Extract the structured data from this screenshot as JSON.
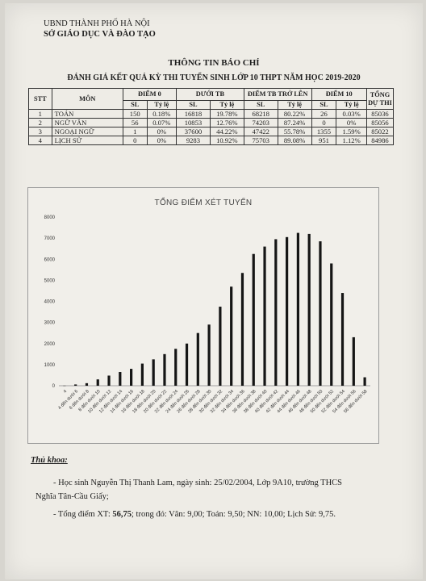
{
  "header": {
    "org_line1": "UBND THÀNH PHỐ HÀ NỘI",
    "org_line2": "SỞ GIÁO DỤC VÀ ĐÀO TẠO"
  },
  "titles": {
    "main": "THÔNG TIN BÁO CHÍ",
    "sub": "ĐÁNH GIÁ KẾT QUẢ KỲ THI TUYỂN SINH LỚP 10 THPT NĂM HỌC 2019-2020"
  },
  "table": {
    "headers": {
      "stt": "STT",
      "mon": "MÔN",
      "diem0": "ĐIỂM 0",
      "duoi_tb": "DƯỚI TB",
      "tb_tro_len": "ĐIỂM TB TRỞ LÊN",
      "diem10": "ĐIỂM 10",
      "tong_du_thi": "TỔNG DỰ THI",
      "sl": "SL",
      "ty_le": "Tỷ lệ"
    },
    "rows": [
      {
        "stt": "1",
        "mon": "TOÁN",
        "d0_sl": "150",
        "d0_tl": "0.18%",
        "dtb_sl": "16818",
        "dtb_tl": "19.78%",
        "tb_sl": "68218",
        "tb_tl": "80.22%",
        "d10_sl": "26",
        "d10_tl": "0.03%",
        "tong": "85036"
      },
      {
        "stt": "2",
        "mon": "NGỮ VĂN",
        "d0_sl": "56",
        "d0_tl": "0.07%",
        "dtb_sl": "10853",
        "dtb_tl": "12.76%",
        "tb_sl": "74203",
        "tb_tl": "87.24%",
        "d10_sl": "0",
        "d10_tl": "0%",
        "tong": "85056"
      },
      {
        "stt": "3",
        "mon": "NGOẠI NGỮ",
        "d0_sl": "1",
        "d0_tl": "0%",
        "dtb_sl": "37600",
        "dtb_tl": "44.22%",
        "tb_sl": "47422",
        "tb_tl": "55.78%",
        "d10_sl": "1355",
        "d10_tl": "1.59%",
        "tong": "85022"
      },
      {
        "stt": "4",
        "mon": "LỊCH SỬ",
        "d0_sl": "0",
        "d0_tl": "0%",
        "dtb_sl": "9283",
        "dtb_tl": "10.92%",
        "tb_sl": "75703",
        "tb_tl": "89.08%",
        "d10_sl": "951",
        "d10_tl": "1.12%",
        "tong": "84986"
      }
    ]
  },
  "chart_data": {
    "type": "bar",
    "title": "TỔNG ĐIỂM XÉT TUYỂN",
    "xlabel": "",
    "ylabel": "",
    "ylim": [
      0,
      8000
    ],
    "yticks": [
      0,
      1000,
      2000,
      3000,
      4000,
      5000,
      6000,
      7000,
      8000
    ],
    "grid": false,
    "categories": [
      "4",
      "4 đến dưới 6",
      "6 đến dưới 8",
      "8 đến dưới 10",
      "10 đến dưới 12",
      "12 đến dưới 14",
      "14 đến dưới 16",
      "16 đến dưới 18",
      "18 đến dưới 20",
      "20 đến dưới 22",
      "22 đến dưới 24",
      "24 đến dưới 26",
      "26 đến dưới 28",
      "28 đến dưới 30",
      "30 đến dưới 32",
      "32 đến dưới 34",
      "34 đến dưới 36",
      "36 đến dưới 38",
      "38 đến dưới 40",
      "40 đến dưới 42",
      "42 đến dưới 44",
      "44 đến dưới 46",
      "46 đến dưới 48",
      "48 đến dưới 50",
      "50 đến dưới 52",
      "52 đến dưới 54",
      "54 đến dưới 56",
      "56 đến dưới 58"
    ],
    "values": [
      5,
      60,
      120,
      300,
      480,
      650,
      800,
      1050,
      1250,
      1500,
      1750,
      2000,
      2500,
      2900,
      3750,
      4700,
      5350,
      6250,
      6600,
      6950,
      7050,
      7250,
      7200,
      6850,
      5800,
      4400,
      2300,
      400
    ],
    "bar_color": "#151515"
  },
  "footer": {
    "thu_khoa_label": "Thủ khoa:",
    "line1": "- Học sinh Nguyễn Thị Thanh Lam, ngày sinh: 25/02/2004, Lớp 9A10, trường THCS",
    "line1b": "Nghĩa Tân-Cầu Giấy;",
    "line2_pre": "- Tổng điểm XT: ",
    "line2_bold": "56,75",
    "line2_post": "; trong đó: Văn: 9,00; Toán: 9,50; NN: 10,00; Lịch Sử: 9,75."
  }
}
